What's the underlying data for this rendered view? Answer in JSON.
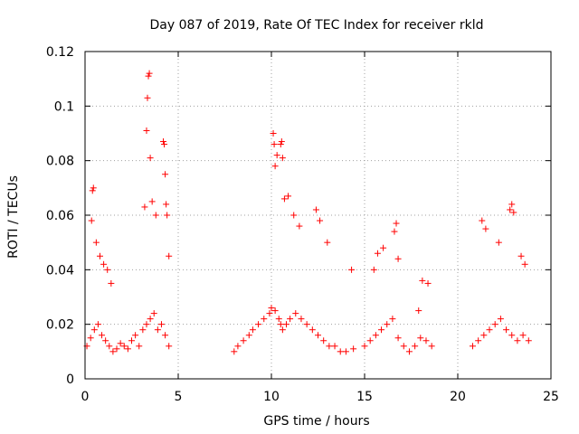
{
  "chart_data": {
    "type": "scatter",
    "title": "Day 087 of 2019, Rate Of TEC Index for receiver rkld",
    "xlabel": "GPS time / hours",
    "ylabel": "ROTI / TECUs",
    "xlim": [
      0,
      25
    ],
    "ylim": [
      0,
      0.12
    ],
    "xticks": [
      0,
      5,
      10,
      15,
      20,
      25
    ],
    "yticks": [
      0,
      0.02,
      0.04,
      0.06,
      0.08,
      0.1,
      0.12
    ],
    "xtick_labels": [
      "0",
      "5",
      "10",
      "15",
      "20",
      "25"
    ],
    "ytick_labels": [
      "0",
      "0.02",
      "0.04",
      "0.06",
      "0.08",
      "0.1",
      "0.12"
    ],
    "grid": true,
    "marker": "+",
    "color": "#ff0000",
    "series": [
      {
        "name": "ROTI",
        "x": [
          0.1,
          0.3,
          0.5,
          0.7,
          0.9,
          1.1,
          1.3,
          1.5,
          1.7,
          1.9,
          2.1,
          2.3,
          2.5,
          2.7,
          2.9,
          3.1,
          3.3,
          3.5,
          3.7,
          3.9,
          4.1,
          4.3,
          4.5,
          0.35,
          0.4,
          0.45,
          0.6,
          0.8,
          1.0,
          1.2,
          1.4,
          3.2,
          3.3,
          3.35,
          3.4,
          3.45,
          3.5,
          3.6,
          3.8,
          4.2,
          4.25,
          4.3,
          4.35,
          4.4,
          4.5,
          8.0,
          8.2,
          8.5,
          8.8,
          9.0,
          9.3,
          9.6,
          9.9,
          10.0,
          10.2,
          10.4,
          10.5,
          10.6,
          10.8,
          11.0,
          11.3,
          11.6,
          11.9,
          12.2,
          12.5,
          12.8,
          13.1,
          13.4,
          13.7,
          14.0,
          14.4,
          10.1,
          10.15,
          10.2,
          10.3,
          10.5,
          10.55,
          10.6,
          10.7,
          10.9,
          11.2,
          11.5,
          12.4,
          12.6,
          13.0,
          14.3,
          15.0,
          15.3,
          15.6,
          15.9,
          16.2,
          16.5,
          16.8,
          17.1,
          17.4,
          17.7,
          18.0,
          18.3,
          18.6,
          15.5,
          15.7,
          16.0,
          16.6,
          16.7,
          16.8,
          17.9,
          18.1,
          18.4,
          20.8,
          21.1,
          21.4,
          21.7,
          22.0,
          22.3,
          22.6,
          22.9,
          23.2,
          23.5,
          23.8,
          21.3,
          21.5,
          22.2,
          22.8,
          22.9,
          23.0,
          23.4,
          23.6
        ],
        "y": [
          0.012,
          0.015,
          0.018,
          0.02,
          0.016,
          0.014,
          0.012,
          0.01,
          0.011,
          0.013,
          0.012,
          0.011,
          0.014,
          0.016,
          0.012,
          0.018,
          0.02,
          0.022,
          0.024,
          0.018,
          0.02,
          0.016,
          0.012,
          0.058,
          0.069,
          0.07,
          0.05,
          0.045,
          0.042,
          0.04,
          0.035,
          0.063,
          0.091,
          0.103,
          0.111,
          0.112,
          0.081,
          0.065,
          0.06,
          0.087,
          0.086,
          0.075,
          0.064,
          0.06,
          0.045,
          0.01,
          0.012,
          0.014,
          0.016,
          0.018,
          0.02,
          0.022,
          0.024,
          0.026,
          0.025,
          0.022,
          0.02,
          0.018,
          0.02,
          0.022,
          0.024,
          0.022,
          0.02,
          0.018,
          0.016,
          0.014,
          0.012,
          0.012,
          0.01,
          0.01,
          0.011,
          0.09,
          0.086,
          0.078,
          0.082,
          0.086,
          0.087,
          0.081,
          0.066,
          0.067,
          0.06,
          0.056,
          0.062,
          0.058,
          0.05,
          0.04,
          0.012,
          0.014,
          0.016,
          0.018,
          0.02,
          0.022,
          0.015,
          0.012,
          0.01,
          0.012,
          0.015,
          0.014,
          0.012,
          0.04,
          0.046,
          0.048,
          0.054,
          0.057,
          0.044,
          0.025,
          0.036,
          0.035,
          0.012,
          0.014,
          0.016,
          0.018,
          0.02,
          0.022,
          0.018,
          0.016,
          0.014,
          0.016,
          0.014,
          0.058,
          0.055,
          0.05,
          0.062,
          0.064,
          0.061,
          0.045,
          0.042
        ]
      }
    ]
  }
}
